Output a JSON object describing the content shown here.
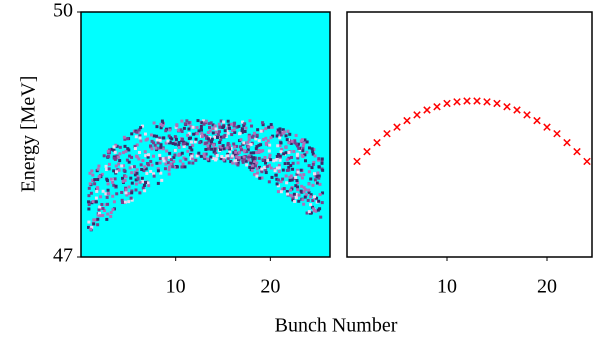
{
  "chart_data": [
    {
      "type": "image",
      "ylabel": "Energy [MeV]",
      "xlabel": "Bunch Number",
      "xlim": [
        0,
        26.3
      ],
      "xticks": [
        10,
        20
      ],
      "ylim": [
        47,
        50
      ],
      "yticks": [
        47,
        50
      ],
      "background": "#00ffff"
    },
    {
      "type": "scatter",
      "marker": "x",
      "color": "#ff0000",
      "x": [
        1,
        2,
        3,
        4,
        5,
        6,
        7,
        8,
        9,
        10,
        11,
        12,
        13,
        14,
        15,
        16,
        17,
        18,
        19,
        20,
        21,
        22,
        23,
        24
      ],
      "values": [
        48.17,
        48.29,
        48.4,
        48.51,
        48.59,
        48.67,
        48.74,
        48.8,
        48.84,
        48.88,
        48.9,
        48.91,
        48.91,
        48.9,
        48.88,
        48.84,
        48.8,
        48.74,
        48.67,
        48.59,
        48.51,
        48.4,
        48.29,
        48.17
      ],
      "xlim": [
        0,
        24.5
      ],
      "xticks": [
        10,
        20
      ],
      "ylim": [
        47,
        50
      ]
    }
  ]
}
